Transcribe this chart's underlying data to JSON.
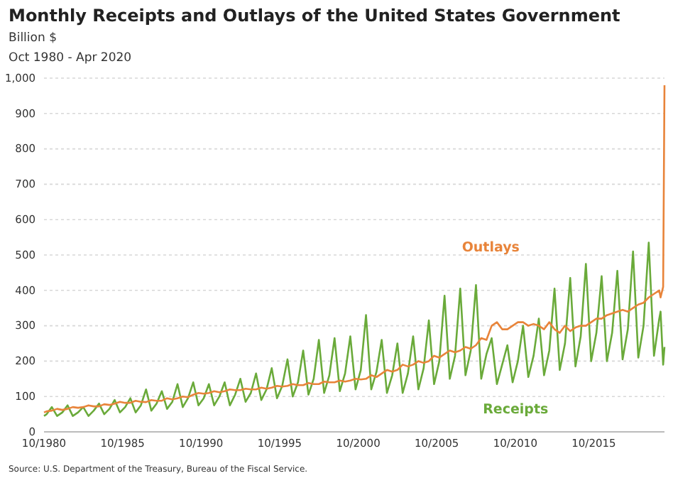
{
  "chart_data": {
    "type": "line",
    "title": "Monthly Receipts and Outlays of the United States Government",
    "subtitle": "Oct 1980 - Apr 2020",
    "ylabel": "Billion $",
    "annotations": [
      "Source: U.S. Department of the Treasury, Bureau of the Fiscal Service."
    ],
    "x": [
      "1980-10",
      "1980-12",
      "1981-04",
      "1981-08",
      "1981-12",
      "1982-04",
      "1982-08",
      "1982-12",
      "1983-04",
      "1983-08",
      "1983-12",
      "1984-04",
      "1984-08",
      "1984-12",
      "1985-04",
      "1985-08",
      "1985-12",
      "1986-04",
      "1986-08",
      "1986-12",
      "1987-04",
      "1987-08",
      "1987-12",
      "1988-04",
      "1988-08",
      "1988-12",
      "1989-04",
      "1989-08",
      "1989-12",
      "1990-04",
      "1990-08",
      "1990-12",
      "1991-04",
      "1991-08",
      "1991-12",
      "1992-04",
      "1992-08",
      "1992-12",
      "1993-04",
      "1993-08",
      "1993-12",
      "1994-04",
      "1994-08",
      "1994-12",
      "1995-04",
      "1995-08",
      "1995-12",
      "1996-04",
      "1996-08",
      "1996-12",
      "1997-04",
      "1997-08",
      "1997-12",
      "1998-04",
      "1998-08",
      "1998-12",
      "1999-04",
      "1999-08",
      "1999-12",
      "2000-04",
      "2000-08",
      "2000-12",
      "2001-04",
      "2001-08",
      "2001-12",
      "2002-04",
      "2002-08",
      "2002-12",
      "2003-04",
      "2003-08",
      "2003-12",
      "2004-04",
      "2004-08",
      "2004-12",
      "2005-04",
      "2005-08",
      "2005-12",
      "2006-04",
      "2006-08",
      "2006-12",
      "2007-04",
      "2007-08",
      "2007-12",
      "2008-04",
      "2008-08",
      "2008-12",
      "2009-04",
      "2009-08",
      "2009-12",
      "2010-04",
      "2010-08",
      "2010-12",
      "2011-04",
      "2011-08",
      "2011-12",
      "2012-04",
      "2012-08",
      "2012-12",
      "2013-04",
      "2013-08",
      "2013-12",
      "2014-04",
      "2014-08",
      "2014-12",
      "2015-04",
      "2015-08",
      "2015-12",
      "2016-04",
      "2016-08",
      "2016-12",
      "2017-04",
      "2017-08",
      "2017-12",
      "2018-04",
      "2018-08",
      "2018-12",
      "2019-04",
      "2019-08",
      "2019-12",
      "2020-01",
      "2020-03",
      "2020-04"
    ],
    "series": [
      {
        "name": "Receipts",
        "color": "#6aaa3a",
        "values": [
          45,
          50,
          70,
          45,
          55,
          75,
          45,
          55,
          70,
          45,
          60,
          80,
          50,
          65,
          90,
          55,
          70,
          95,
          55,
          75,
          120,
          60,
          80,
          115,
          65,
          85,
          135,
          70,
          95,
          140,
          75,
          95,
          135,
          75,
          100,
          140,
          75,
          105,
          150,
          85,
          110,
          165,
          90,
          120,
          180,
          95,
          130,
          205,
          100,
          140,
          230,
          105,
          150,
          260,
          110,
          160,
          265,
          115,
          165,
          270,
          120,
          175,
          330,
          120,
          170,
          260,
          110,
          160,
          250,
          110,
          165,
          270,
          120,
          180,
          315,
          135,
          200,
          385,
          150,
          215,
          405,
          160,
          230,
          415,
          150,
          220,
          265,
          135,
          190,
          245,
          140,
          200,
          300,
          155,
          215,
          320,
          160,
          230,
          405,
          175,
          250,
          435,
          185,
          270,
          475,
          200,
          280,
          440,
          200,
          280,
          455,
          205,
          290,
          510,
          210,
          300,
          535,
          215,
          320,
          340,
          190,
          240
        ]
      },
      {
        "name": "Outlays",
        "color": "#e8843a",
        "values": [
          55,
          58,
          60,
          65,
          62,
          65,
          70,
          68,
          70,
          75,
          72,
          72,
          78,
          76,
          80,
          85,
          82,
          82,
          88,
          85,
          84,
          90,
          88,
          88,
          95,
          92,
          95,
          100,
          98,
          105,
          110,
          108,
          110,
          115,
          112,
          115,
          120,
          118,
          118,
          122,
          120,
          120,
          125,
          122,
          125,
          130,
          128,
          130,
          135,
          132,
          132,
          138,
          135,
          135,
          142,
          140,
          140,
          145,
          142,
          145,
          150,
          148,
          150,
          160,
          155,
          165,
          175,
          170,
          175,
          190,
          185,
          190,
          200,
          195,
          200,
          215,
          210,
          220,
          230,
          225,
          230,
          240,
          235,
          245,
          265,
          260,
          300,
          310,
          290,
          290,
          300,
          310,
          310,
          300,
          305,
          300,
          290,
          310,
          290,
          280,
          300,
          285,
          295,
          300,
          300,
          310,
          320,
          320,
          330,
          335,
          340,
          345,
          340,
          350,
          360,
          365,
          380,
          390,
          400,
          380,
          410,
          980
        ]
      }
    ],
    "xlim": [
      "1980-10",
      "2020-04"
    ],
    "xticks": [
      {
        "value": "1980-10",
        "label": "10/1980"
      },
      {
        "value": "1985-10",
        "label": "10/1985"
      },
      {
        "value": "1990-10",
        "label": "10/1990"
      },
      {
        "value": "1995-10",
        "label": "10/1995"
      },
      {
        "value": "2000-10",
        "label": "10/2000"
      },
      {
        "value": "2005-10",
        "label": "10/2005"
      },
      {
        "value": "2010-10",
        "label": "10/2010"
      },
      {
        "value": "2015-10",
        "label": "10/2015"
      }
    ],
    "ylim": [
      0,
      1000
    ],
    "yticks": [
      0,
      100,
      200,
      300,
      400,
      500,
      600,
      700,
      800,
      900,
      {
        "value": 1000,
        "label": "1,000"
      }
    ],
    "grid": "y",
    "legend": false,
    "line_style": "solid",
    "marker": "none"
  }
}
